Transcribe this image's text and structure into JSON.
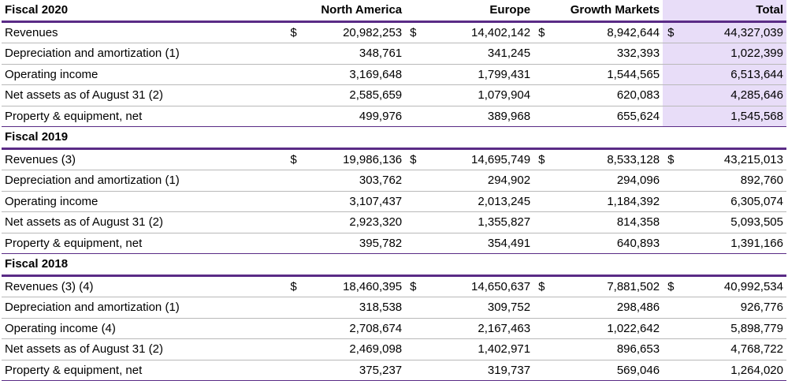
{
  "header": {
    "label": "Fiscal 2020",
    "north_america": "North America",
    "europe": "Europe",
    "growth_markets": "Growth Markets",
    "total": "Total"
  },
  "sections": [
    {
      "rows": [
        {
          "label": "Revenues",
          "na_dollar": "$",
          "na": "20,982,253",
          "eu_dollar": "$",
          "eu": "14,402,142",
          "gm_dollar": "$",
          "gm": "8,942,644",
          "tot_dollar": "$",
          "tot": "44,327,039"
        },
        {
          "label": "Depreciation and amortization (1)",
          "na": "348,761",
          "eu": "341,245",
          "gm": "332,393",
          "tot": "1,022,399"
        },
        {
          "label": "Operating income",
          "na": "3,169,648",
          "eu": "1,799,431",
          "gm": "1,544,565",
          "tot": "6,513,644"
        },
        {
          "label": "Net assets as of August 31 (2)",
          "na": "2,585,659",
          "eu": "1,079,904",
          "gm": "620,083",
          "tot": "4,285,646"
        },
        {
          "label": "Property & equipment, net",
          "na": "499,976",
          "eu": "389,968",
          "gm": "655,624",
          "tot": "1,545,568"
        }
      ]
    },
    {
      "title": "Fiscal 2019",
      "rows": [
        {
          "label": "Revenues (3)",
          "na_dollar": "$",
          "na": "19,986,136",
          "eu_dollar": "$",
          "eu": "14,695,749",
          "gm_dollar": "$",
          "gm": "8,533,128",
          "tot_dollar": "$",
          "tot": "43,215,013"
        },
        {
          "label": "Depreciation and amortization (1)",
          "na": "303,762",
          "eu": "294,902",
          "gm": "294,096",
          "tot": "892,760"
        },
        {
          "label": "Operating income",
          "na": "3,107,437",
          "eu": "2,013,245",
          "gm": "1,184,392",
          "tot": "6,305,074"
        },
        {
          "label": "Net assets as of August 31 (2)",
          "na": "2,923,320",
          "eu": "1,355,827",
          "gm": "814,358",
          "tot": "5,093,505"
        },
        {
          "label": "Property & equipment, net",
          "na": "395,782",
          "eu": "354,491",
          "gm": "640,893",
          "tot": "1,391,166"
        }
      ]
    },
    {
      "title": "Fiscal 2018",
      "rows": [
        {
          "label": "Revenues (3) (4)",
          "na_dollar": "$",
          "na": "18,460,395",
          "eu_dollar": "$",
          "eu": "14,650,637",
          "gm_dollar": "$",
          "gm": "7,881,502",
          "tot_dollar": "$",
          "tot": "40,992,534"
        },
        {
          "label": "Depreciation and amortization (1)",
          "na": "318,538",
          "eu": "309,752",
          "gm": "298,486",
          "tot": "926,776"
        },
        {
          "label": "Operating income (4)",
          "na": "2,708,674",
          "eu": "2,167,463",
          "gm": "1,022,642",
          "tot": "5,898,779"
        },
        {
          "label": "Net assets as of August 31 (2)",
          "na": "2,469,098",
          "eu": "1,402,971",
          "gm": "896,653",
          "tot": "4,768,722"
        },
        {
          "label": "Property & equipment, net",
          "na": "375,237",
          "eu": "319,737",
          "gm": "569,046",
          "tot": "1,264,020"
        }
      ]
    }
  ],
  "colors": {
    "accent_rule": "#5a2b86",
    "highlight": "#e8ddf8"
  }
}
